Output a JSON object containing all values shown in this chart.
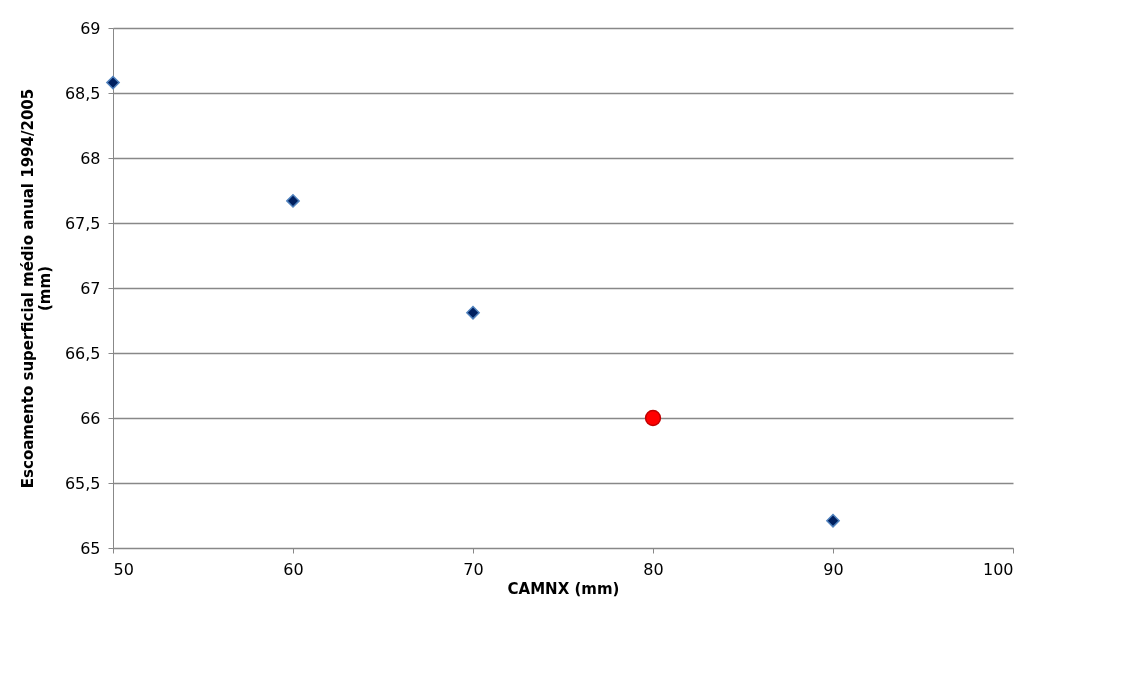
{
  "chart_data": {
    "type": "scatter",
    "xlabel": "CAMNX (mm)",
    "ylabel": "Escoamento superficial médio anual 1994/2005 (mm)",
    "series": [
      {
        "color": "#002060",
        "marker": "diamond",
        "x": [
          50,
          60,
          70,
          90
        ],
        "values": [
          68.58,
          67.67,
          66.81,
          65.21
        ]
      },
      {
        "color": "#ff0000",
        "marker": "circle",
        "x": [
          80
        ],
        "values": [
          66.0
        ]
      }
    ],
    "xlim": [
      50,
      100
    ],
    "xticks": [
      50,
      60,
      70,
      80,
      90,
      100
    ],
    "ylim": [
      65,
      69
    ],
    "yticks": [
      65,
      {
        "value": 65.5,
        "label": "65,5"
      },
      66,
      {
        "value": 66.5,
        "label": "66,5"
      },
      67,
      {
        "value": 67.5,
        "label": "67,5"
      },
      68,
      {
        "value": 68.5,
        "label": "68,5"
      },
      69
    ],
    "grid": "y"
  }
}
